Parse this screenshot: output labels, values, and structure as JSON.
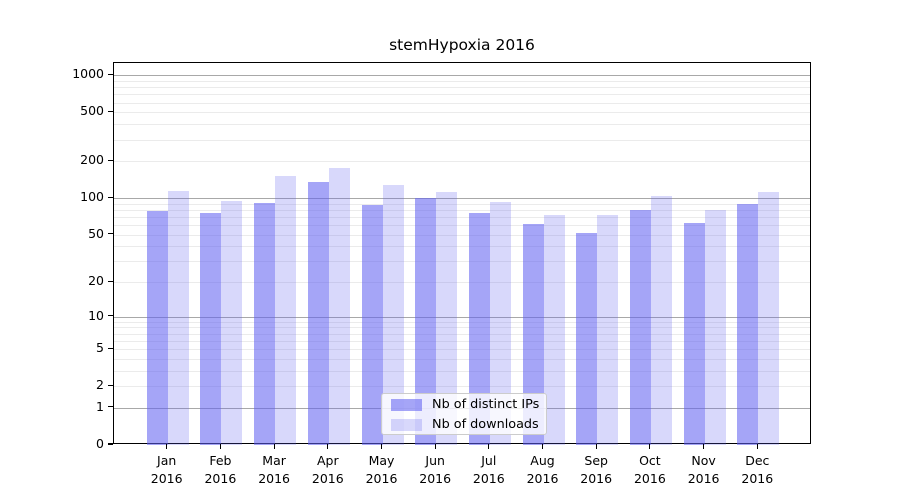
{
  "figure": {
    "title": "stemHypoxia 2016"
  },
  "chart_data": {
    "type": "bar",
    "title": "stemHypoxia 2016",
    "categories": [
      "Jan 2016",
      "Feb 2016",
      "Mar 2016",
      "Apr 2016",
      "May 2016",
      "Jun 2016",
      "Jul 2016",
      "Aug 2016",
      "Sep 2016",
      "Oct 2016",
      "Nov 2016",
      "Dec 2016"
    ],
    "month_labels": [
      "Jan",
      "Feb",
      "Mar",
      "Apr",
      "May",
      "Jun",
      "Jul",
      "Aug",
      "Sep",
      "Oct",
      "Nov",
      "Dec"
    ],
    "year_label": "2016",
    "series": [
      {
        "name": "Nb of distinct IPs",
        "values": [
          78,
          75,
          91,
          136,
          88,
          101,
          76,
          61,
          52,
          80,
          63,
          89
        ]
      },
      {
        "name": "Nb of downloads",
        "values": [
          115,
          95,
          152,
          177,
          129,
          113,
          93,
          73,
          72,
          105,
          80,
          112
        ]
      }
    ],
    "yscale": "log10(value+1)",
    "ylim": [
      0,
      1260
    ],
    "yticks": [
      0,
      1,
      2,
      5,
      10,
      20,
      50,
      100,
      200,
      500,
      1000
    ],
    "grid": {
      "visible": true,
      "major_lines": [
        1,
        10,
        100,
        1000
      ],
      "minor_multipliers_per_decade": [
        2,
        3,
        4,
        5,
        6,
        7,
        8,
        9
      ]
    },
    "legend_position": "lower-center-inside",
    "xlabel": "",
    "ylabel": ""
  },
  "legend": {
    "items": [
      {
        "label": "Nb of distinct IPs",
        "color_key": "bar_distinct_ips"
      },
      {
        "label": "Nb of downloads",
        "color_key": "bar_downloads"
      }
    ]
  },
  "colors": {
    "bar_distinct_ips": "rgba(95,95,240,0.56)",
    "bar_downloads": "rgba(95,95,240,0.245)",
    "grid_major": "#a8a8a8",
    "grid_minor": "#ebebeb",
    "axis": "#000000",
    "text": "#000000",
    "legend_border": "#cccccc",
    "legend_bg": "rgba(255,255,255,0.8)"
  }
}
